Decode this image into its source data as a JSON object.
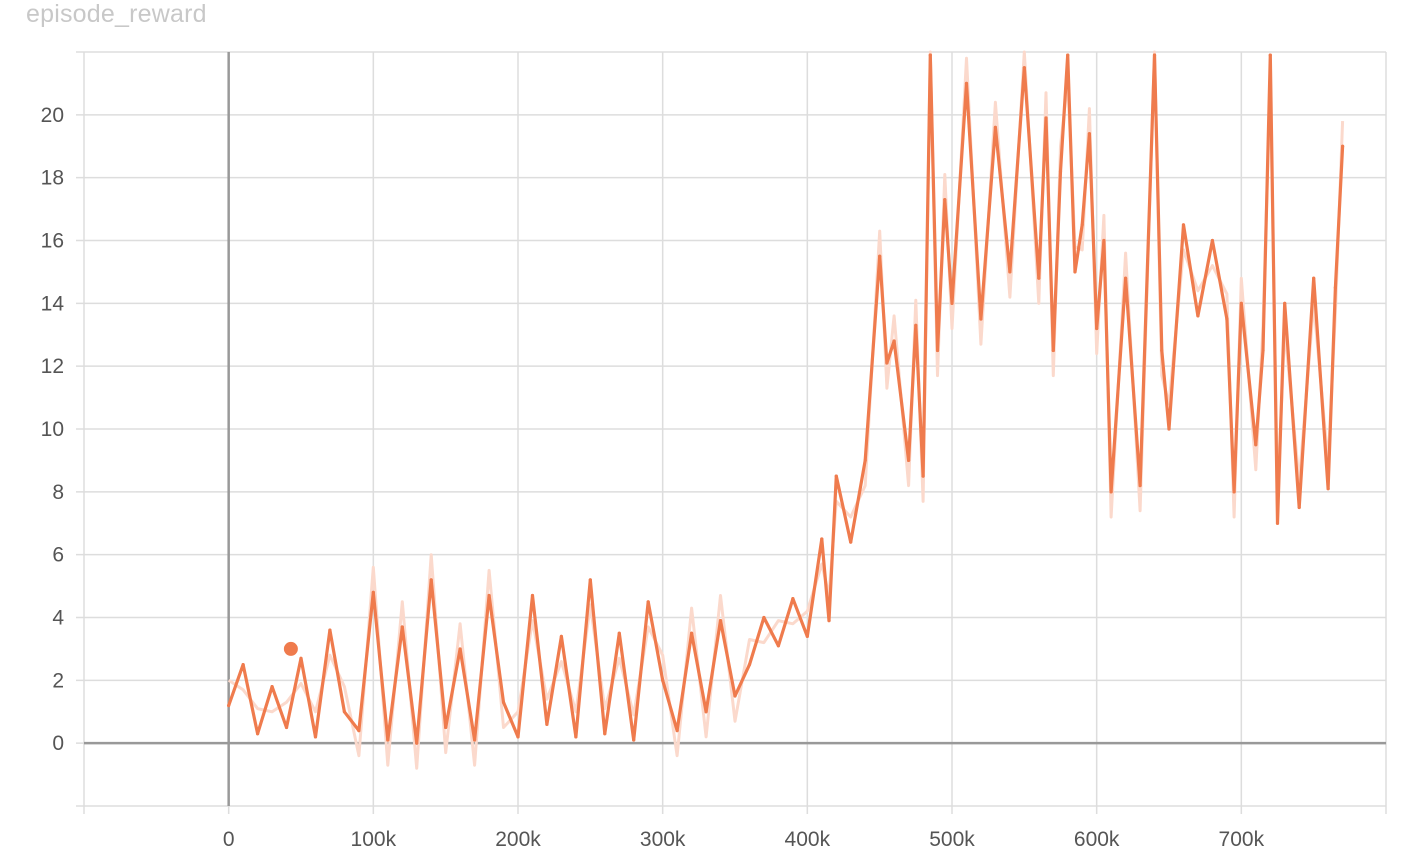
{
  "chart_data": {
    "type": "line",
    "title": "episode_reward",
    "xlabel": "",
    "ylabel": "",
    "xlim": [
      -100000,
      800000
    ],
    "ylim": [
      -2,
      22
    ],
    "x_ticks": [
      0,
      100000,
      200000,
      300000,
      400000,
      500000,
      600000,
      700000
    ],
    "x_tick_labels": [
      "0",
      "100k",
      "200k",
      "300k",
      "400k",
      "500k",
      "600k",
      "700k"
    ],
    "y_ticks": [
      0,
      2,
      4,
      6,
      8,
      10,
      12,
      14,
      16,
      18,
      20
    ],
    "y_tick_labels": [
      "0",
      "2",
      "4",
      "6",
      "8",
      "10",
      "12",
      "14",
      "16",
      "18",
      "20"
    ],
    "grid": true,
    "colors": {
      "smoothed": "#ef7b4d",
      "raw": "#fbd9cc",
      "grid": "#dddddd",
      "zero_axis": "#999999"
    },
    "marker": {
      "x": 43000,
      "y": 3.0
    },
    "series": [
      {
        "name": "episode_reward",
        "x": [
          0,
          10000,
          20000,
          30000,
          40000,
          50000,
          60000,
          70000,
          80000,
          90000,
          100000,
          110000,
          120000,
          130000,
          140000,
          150000,
          160000,
          170000,
          180000,
          190000,
          200000,
          210000,
          220000,
          230000,
          240000,
          250000,
          260000,
          270000,
          280000,
          290000,
          300000,
          310000,
          320000,
          330000,
          340000,
          350000,
          360000,
          370000,
          380000,
          390000,
          400000,
          410000,
          415000,
          420000,
          430000,
          440000,
          450000,
          455000,
          460000,
          470000,
          475000,
          480000,
          485000,
          490000,
          495000,
          500000,
          510000,
          520000,
          530000,
          540000,
          550000,
          560000,
          565000,
          570000,
          575000,
          580000,
          585000,
          590000,
          595000,
          600000,
          605000,
          610000,
          620000,
          630000,
          640000,
          645000,
          650000,
          660000,
          670000,
          680000,
          690000,
          695000,
          700000,
          710000,
          715000,
          720000,
          725000,
          730000,
          740000,
          750000,
          760000,
          765000,
          770000
        ],
        "values": [
          1.2,
          2.5,
          0.3,
          1.8,
          0.5,
          2.7,
          0.2,
          3.6,
          1.0,
          0.4,
          4.8,
          0.1,
          3.7,
          0.0,
          5.2,
          0.5,
          3.0,
          0.1,
          4.7,
          1.3,
          0.2,
          4.7,
          0.6,
          3.4,
          0.2,
          5.2,
          0.3,
          3.5,
          0.1,
          4.5,
          2.0,
          0.4,
          3.5,
          1.0,
          3.9,
          1.5,
          2.5,
          4.0,
          3.1,
          4.6,
          3.4,
          6.5,
          3.9,
          8.5,
          6.4,
          9.0,
          15.5,
          12.1,
          12.8,
          9.0,
          13.3,
          8.5,
          21.9,
          12.5,
          17.3,
          14.0,
          21.0,
          13.5,
          19.6,
          15.0,
          21.5,
          14.8,
          19.9,
          12.5,
          18.2,
          21.9,
          15.0,
          16.5,
          19.4,
          13.2,
          16.0,
          8.0,
          14.8,
          8.2,
          21.9,
          12.5,
          10.0,
          16.5,
          13.6,
          16.0,
          13.5,
          8.0,
          14.0,
          9.5,
          12.5,
          21.9,
          7.0,
          14.0,
          7.5,
          14.8,
          8.1,
          14.5,
          19.0
        ]
      }
    ]
  }
}
